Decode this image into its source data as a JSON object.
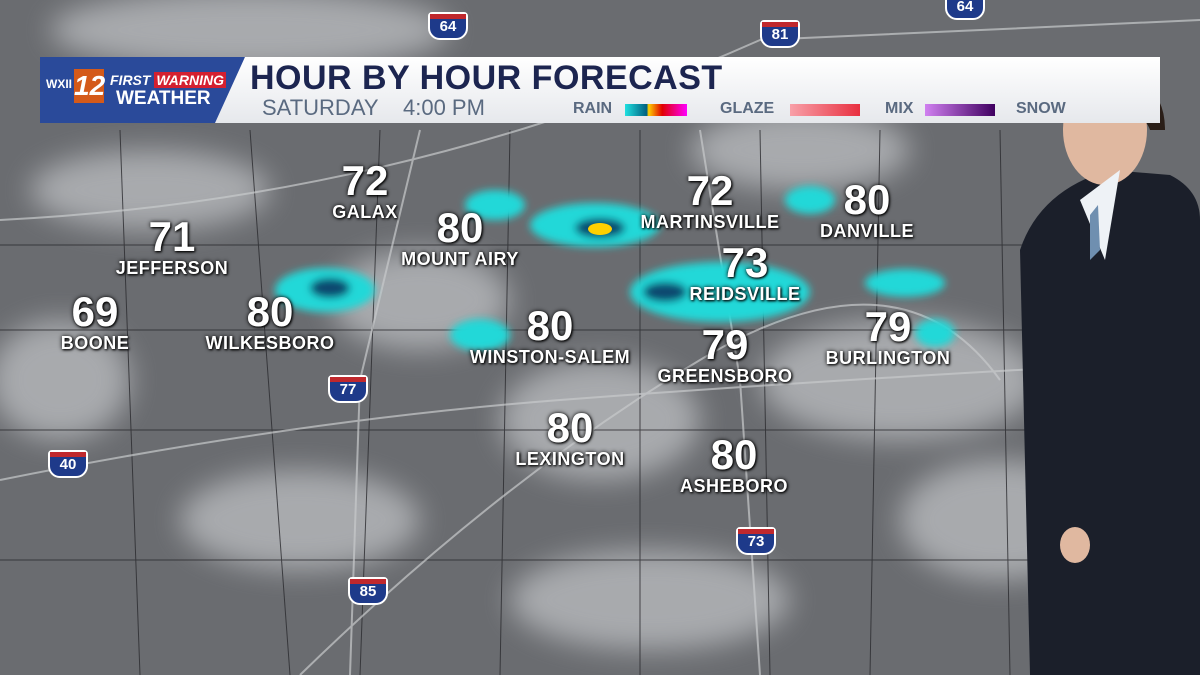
{
  "header": {
    "brand_line1a": "FIRST",
    "brand_line1b": "WARNING",
    "brand_line2": "WEATHER",
    "station": "WXII",
    "channel": "12",
    "title": "HOUR BY HOUR FORECAST",
    "day": "SATURDAY",
    "time": "4:00 PM"
  },
  "legend": [
    {
      "label": "RAIN",
      "colors": [
        "#20e0e0",
        "#006080",
        "#ffd000",
        "#e00000",
        "#ff00ff"
      ]
    },
    {
      "label": "GLAZE",
      "colors": [
        "#f8a0a8",
        "#e83040"
      ]
    },
    {
      "label": "MIX",
      "colors": [
        "#d080f0",
        "#400060"
      ]
    },
    {
      "label": "SNOW",
      "colors": []
    }
  ],
  "cities": [
    {
      "name": "GALAX",
      "temp": "72"
    },
    {
      "name": "JEFFERSON",
      "temp": "71"
    },
    {
      "name": "BOONE",
      "temp": "69"
    },
    {
      "name": "WILKESBORO",
      "temp": "80"
    },
    {
      "name": "MOUNT AIRY",
      "temp": "80"
    },
    {
      "name": "WINSTON-SALEM",
      "temp": "80"
    },
    {
      "name": "MARTINSVILLE",
      "temp": "72"
    },
    {
      "name": "REIDSVILLE",
      "temp": "73"
    },
    {
      "name": "DANVILLE",
      "temp": "80"
    },
    {
      "name": "GREENSBORO",
      "temp": "79"
    },
    {
      "name": "BURLINGTON",
      "temp": "79"
    },
    {
      "name": "LEXINGTON",
      "temp": "80"
    },
    {
      "name": "ASHEBORO",
      "temp": "80"
    }
  ],
  "interstates": [
    "64",
    "64",
    "81",
    "77",
    "40",
    "85",
    "73"
  ]
}
